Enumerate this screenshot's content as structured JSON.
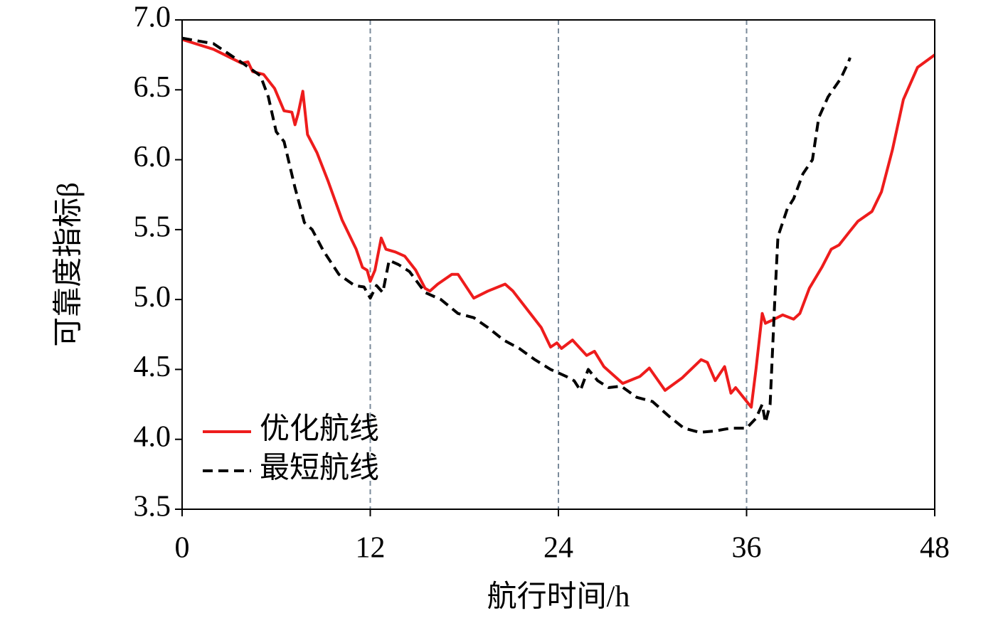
{
  "chart_data": {
    "type": "line",
    "xlabel": "航行时间/h",
    "ylabel": "可靠度指标β",
    "xlim": [
      0,
      48
    ],
    "xticks": [
      0,
      12,
      24,
      36,
      48
    ],
    "ylim": [
      3.5,
      7.0
    ],
    "yticks": [
      {
        "value": 3.5,
        "label": "3.5"
      },
      {
        "value": 4,
        "label": "4.0"
      },
      4.5,
      {
        "value": 5,
        "label": "5.0"
      },
      5.5,
      {
        "value": 6,
        "label": "6.0"
      },
      6.5,
      {
        "value": 7,
        "label": "7.0"
      }
    ],
    "vlines": [
      12,
      24,
      36
    ],
    "legend": "lower left",
    "series": [
      {
        "name": "优化航线",
        "color": "#ee1c1c",
        "dash": "solid",
        "x": [
          0,
          2,
          3.8,
          4.2,
          4.5,
          5.2,
          5.9,
          6.5,
          7.0,
          7.2,
          7.4,
          7.7,
          8.0,
          8.6,
          9.3,
          10.2,
          11.1,
          11.5,
          11.8,
          12.0,
          12.3,
          12.7,
          13.0,
          13.6,
          14.2,
          14.9,
          15.5,
          15.8,
          16.3,
          17.2,
          17.6,
          18.6,
          19.5,
          20.6,
          21.1,
          22.0,
          22.9,
          23.5,
          23.9,
          24.2,
          24.9,
          25.8,
          26.3,
          26.9,
          28.1,
          29.2,
          29.8,
          30.8,
          31.9,
          33.1,
          33.5,
          34.0,
          34.6,
          35.0,
          35.3,
          35.8,
          36.3,
          36.6,
          37.0,
          37.2,
          37.6,
          38.3,
          39.0,
          39.4,
          40.0,
          40.8,
          41.4,
          41.9,
          42.6,
          43.1,
          44.0,
          44.6,
          45.3,
          46.0,
          46.9,
          48.0
        ],
        "values": [
          6.86,
          6.79,
          6.69,
          6.7,
          6.63,
          6.61,
          6.51,
          6.35,
          6.34,
          6.25,
          6.33,
          6.49,
          6.18,
          6.05,
          5.85,
          5.57,
          5.36,
          5.23,
          5.21,
          5.13,
          5.21,
          5.44,
          5.36,
          5.34,
          5.31,
          5.21,
          5.08,
          5.06,
          5.11,
          5.18,
          5.18,
          5.01,
          5.06,
          5.11,
          5.06,
          4.93,
          4.8,
          4.66,
          4.69,
          4.65,
          4.71,
          4.6,
          4.63,
          4.52,
          4.4,
          4.45,
          4.51,
          4.35,
          4.44,
          4.57,
          4.55,
          4.42,
          4.52,
          4.33,
          4.37,
          4.3,
          4.23,
          4.5,
          4.9,
          4.83,
          4.85,
          4.89,
          4.86,
          4.9,
          5.08,
          5.23,
          5.36,
          5.39,
          5.49,
          5.56,
          5.63,
          5.77,
          6.07,
          6.43,
          6.66,
          6.75
        ]
      },
      {
        "name": "最短航线",
        "color": "#000000",
        "dash": "dashed",
        "x": [
          0,
          2,
          4,
          5,
          5.5,
          6.0,
          6.5,
          7.2,
          7.8,
          8.3,
          9.0,
          10.0,
          11.0,
          11.6,
          12.0,
          12.4,
          12.8,
          13.2,
          13.8,
          14.5,
          15.5,
          16.5,
          17.6,
          18.6,
          19.5,
          20.5,
          21.5,
          22.5,
          23.5,
          24.5,
          25.0,
          25.4,
          25.9,
          26.5,
          27.2,
          28.0,
          29.0,
          30.0,
          31.0,
          32.0,
          33.0,
          34.0,
          35.0,
          36.0,
          36.6,
          37.0,
          37.2,
          37.5,
          37.8,
          38.0,
          38.6,
          39.0,
          39.6,
          40.2,
          40.6,
          41.2,
          42.0,
          42.5,
          42.6
        ],
        "values": [
          6.87,
          6.83,
          6.68,
          6.6,
          6.45,
          6.2,
          6.13,
          5.8,
          5.55,
          5.5,
          5.35,
          5.18,
          5.1,
          5.09,
          5.01,
          5.1,
          5.05,
          5.28,
          5.25,
          5.2,
          5.05,
          5.0,
          4.9,
          4.87,
          4.8,
          4.71,
          4.65,
          4.57,
          4.5,
          4.45,
          4.42,
          4.35,
          4.5,
          4.42,
          4.37,
          4.38,
          4.3,
          4.27,
          4.17,
          4.08,
          4.05,
          4.06,
          4.08,
          4.08,
          4.15,
          4.25,
          4.12,
          4.25,
          5.0,
          5.45,
          5.65,
          5.72,
          5.9,
          6.0,
          6.3,
          6.45,
          6.58,
          6.7,
          6.73
        ]
      }
    ]
  }
}
